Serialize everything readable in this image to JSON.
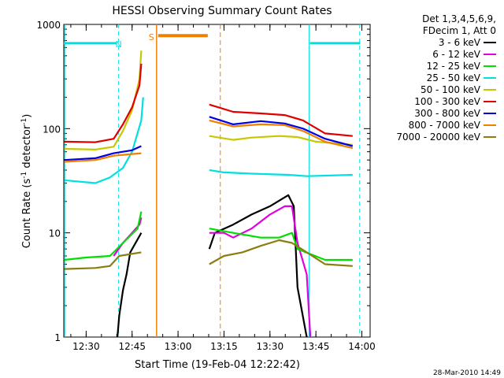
{
  "chart_data": {
    "type": "line",
    "title": "HESSI Observing Summary Count Rates",
    "xlabel": "Start Time (19-Feb-04 12:22:42)",
    "ylabel_main": "Count Rate (s",
    "ylabel_sup1": "-1",
    "ylabel_mid": " detector",
    "ylabel_sup2": "-1",
    "ylabel_end": ")",
    "yscale": "log",
    "ylim": [
      1,
      1000
    ],
    "xlim": [
      "12:22:42",
      "14:02:42"
    ],
    "x_ticks": [
      "12:30",
      "12:45",
      "13:00",
      "13:15",
      "13:30",
      "13:45",
      "14:00"
    ],
    "y_ticks": [
      "1",
      "10",
      "100",
      "1000"
    ],
    "legend_header": [
      "Det 1,3,4,5,6,9,",
      "FDecim 1, Att 0"
    ],
    "legend_placement": "right",
    "markers": {
      "night_label": "N",
      "saa_label": "S",
      "night_color": "#00e0e0",
      "saa_color": "#f08000"
    },
    "footer": "28-Mar-2010 14:49",
    "series": [
      {
        "name": "3 - 6 keV",
        "color": "#000000",
        "points": [
          [
            12.67,
            1.0
          ],
          [
            12.68,
            1.6
          ],
          [
            12.7,
            2.8
          ],
          [
            12.72,
            4.0
          ],
          [
            12.74,
            6.5
          ],
          [
            12.8,
            10
          ],
          [
            13.17,
            7.0
          ],
          [
            13.2,
            10
          ],
          [
            13.3,
            12
          ],
          [
            13.4,
            15
          ],
          [
            13.5,
            18
          ],
          [
            13.6,
            23
          ],
          [
            13.63,
            18
          ],
          [
            13.65,
            3.0
          ],
          [
            13.7,
            1.0
          ]
        ]
      },
      {
        "name": "6 - 12 keV",
        "color": "#e000e0",
        "points": [
          [
            12.65,
            6.0
          ],
          [
            12.7,
            8.0
          ],
          [
            12.75,
            10
          ],
          [
            12.79,
            12
          ],
          [
            12.8,
            14
          ],
          [
            13.17,
            10
          ],
          [
            13.25,
            10
          ],
          [
            13.3,
            9.0
          ],
          [
            13.4,
            11
          ],
          [
            13.5,
            15
          ],
          [
            13.58,
            18
          ],
          [
            13.62,
            18
          ],
          [
            13.65,
            8.0
          ],
          [
            13.7,
            4.0
          ],
          [
            13.72,
            1.0
          ]
        ]
      },
      {
        "name": "12 - 25 keV",
        "color": "#00e000",
        "points": [
          [
            12.38,
            5.5
          ],
          [
            12.5,
            5.8
          ],
          [
            12.63,
            6.0
          ],
          [
            12.7,
            8.0
          ],
          [
            12.78,
            11
          ],
          [
            12.8,
            16
          ],
          [
            13.17,
            11
          ],
          [
            13.3,
            10
          ],
          [
            13.45,
            9.0
          ],
          [
            13.55,
            9.0
          ],
          [
            13.62,
            10
          ],
          [
            13.65,
            7.0
          ],
          [
            13.8,
            5.5
          ],
          [
            13.95,
            5.5
          ]
        ]
      },
      {
        "name": "25 - 50 keV",
        "color": "#00e0e0",
        "points": [
          [
            12.38,
            32
          ],
          [
            12.55,
            30
          ],
          [
            12.63,
            34
          ],
          [
            12.7,
            42
          ],
          [
            12.75,
            60
          ],
          [
            12.8,
            120
          ],
          [
            12.81,
            200
          ],
          [
            13.17,
            40
          ],
          [
            13.25,
            38
          ],
          [
            13.4,
            37
          ],
          [
            13.6,
            36
          ],
          [
            13.7,
            35
          ],
          [
            13.95,
            36
          ]
        ]
      },
      {
        "name": "50 - 100 keV",
        "color": "#c8c800",
        "points": [
          [
            12.38,
            64
          ],
          [
            12.55,
            63
          ],
          [
            12.65,
            67
          ],
          [
            12.7,
            95
          ],
          [
            12.75,
            150
          ],
          [
            12.79,
            300
          ],
          [
            12.8,
            560
          ],
          [
            13.17,
            85
          ],
          [
            13.3,
            78
          ],
          [
            13.4,
            82
          ],
          [
            13.55,
            85
          ],
          [
            13.65,
            83
          ],
          [
            13.75,
            75
          ],
          [
            13.95,
            70
          ]
        ]
      },
      {
        "name": "100 - 300 keV",
        "color": "#e00000",
        "points": [
          [
            12.38,
            75
          ],
          [
            12.55,
            74
          ],
          [
            12.65,
            80
          ],
          [
            12.7,
            110
          ],
          [
            12.75,
            160
          ],
          [
            12.79,
            260
          ],
          [
            12.8,
            420
          ],
          [
            13.17,
            170
          ],
          [
            13.3,
            145
          ],
          [
            13.45,
            140
          ],
          [
            13.58,
            135
          ],
          [
            13.68,
            120
          ],
          [
            13.8,
            90
          ],
          [
            13.95,
            85
          ]
        ]
      },
      {
        "name": "300 - 800 keV",
        "color": "#0000e0",
        "points": [
          [
            12.38,
            50
          ],
          [
            12.55,
            52
          ],
          [
            12.65,
            58
          ],
          [
            12.75,
            62
          ],
          [
            12.8,
            68
          ],
          [
            13.17,
            130
          ],
          [
            13.3,
            110
          ],
          [
            13.45,
            118
          ],
          [
            13.58,
            112
          ],
          [
            13.68,
            100
          ],
          [
            13.8,
            80
          ],
          [
            13.95,
            68
          ]
        ]
      },
      {
        "name": "800 - 7000 keV",
        "color": "#f08000",
        "points": [
          [
            12.38,
            48
          ],
          [
            12.55,
            50
          ],
          [
            12.65,
            55
          ],
          [
            12.75,
            57
          ],
          [
            12.8,
            58
          ],
          [
            13.17,
            120
          ],
          [
            13.3,
            105
          ],
          [
            13.45,
            110
          ],
          [
            13.58,
            108
          ],
          [
            13.68,
            95
          ],
          [
            13.8,
            75
          ],
          [
            13.95,
            65
          ]
        ]
      },
      {
        "name": "7000 - 20000 keV",
        "color": "#8b7d10",
        "points": [
          [
            12.38,
            4.5
          ],
          [
            12.55,
            4.6
          ],
          [
            12.63,
            4.8
          ],
          [
            12.68,
            6.0
          ],
          [
            12.8,
            6.5
          ],
          [
            13.17,
            5.0
          ],
          [
            13.25,
            6.0
          ],
          [
            13.35,
            6.5
          ],
          [
            13.45,
            7.5
          ],
          [
            13.55,
            8.5
          ],
          [
            13.62,
            8.0
          ],
          [
            13.7,
            6.5
          ],
          [
            13.8,
            5.0
          ],
          [
            13.95,
            4.8
          ]
        ]
      }
    ]
  }
}
